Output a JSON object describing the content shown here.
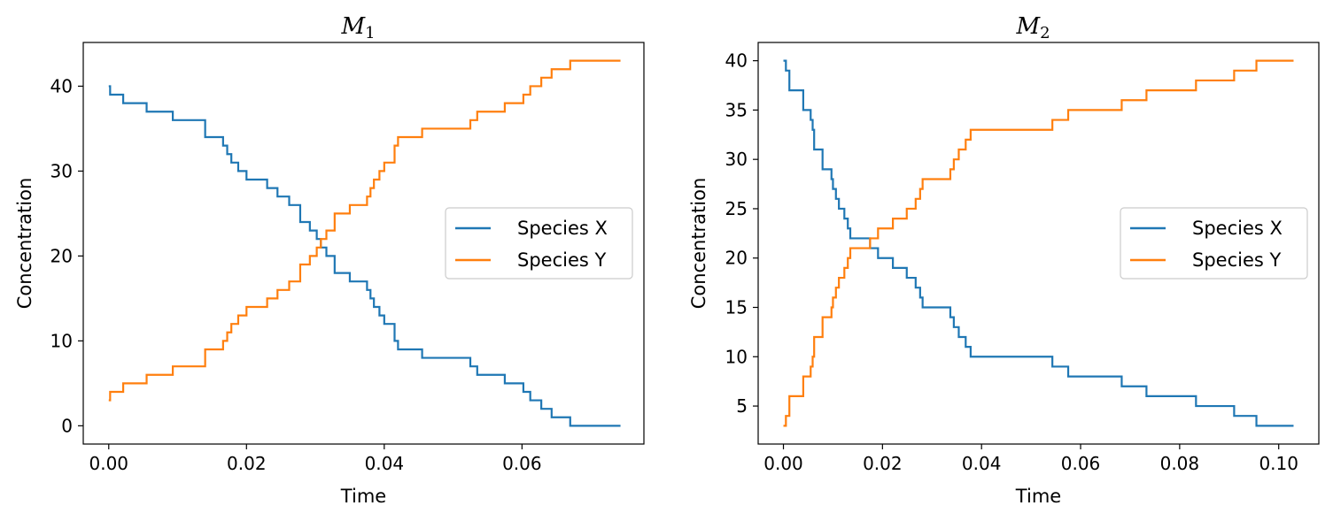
{
  "chart_data": [
    {
      "type": "line",
      "step": true,
      "title": "M",
      "title_subscript": "1",
      "xlabel": "Time",
      "ylabel": "Concentration",
      "xlim": [
        -0.0037,
        0.0777
      ],
      "ylim": [
        -2.15,
        45.15
      ],
      "xticks": [
        0.0,
        0.02,
        0.04,
        0.06
      ],
      "xtick_labels": [
        "0.00",
        "0.02",
        "0.04",
        "0.06"
      ],
      "yticks": [
        0,
        10,
        20,
        30,
        40
      ],
      "ytick_labels": [
        "0",
        "10",
        "20",
        "30",
        "40"
      ],
      "legend_position": "center-right",
      "series": [
        {
          "name": "Species X",
          "color": "#1f77b4",
          "x": [
            0,
            0.0002,
            0.0021,
            0.0055,
            0.0093,
            0.014,
            0.0166,
            0.0172,
            0.0178,
            0.0188,
            0.02,
            0.023,
            0.0245,
            0.0262,
            0.0278,
            0.0292,
            0.0302,
            0.0308,
            0.0316,
            0.0328,
            0.035,
            0.0375,
            0.038,
            0.0385,
            0.0393,
            0.04,
            0.0415,
            0.042,
            0.0455,
            0.0525,
            0.0535,
            0.0575,
            0.0602,
            0.0612,
            0.0628,
            0.0643,
            0.067,
            0.069,
            0.0743
          ],
          "y": [
            40,
            39,
            38,
            37,
            36,
            34,
            33,
            32,
            31,
            30,
            29,
            28,
            27,
            26,
            24,
            23,
            22,
            21,
            20,
            18,
            17,
            16,
            15,
            14,
            13,
            12,
            10,
            9,
            8,
            7,
            6,
            5,
            4,
            3,
            2,
            1,
            0,
            0,
            0
          ]
        },
        {
          "name": "Species Y",
          "color": "#ff7f0e",
          "x": [
            0,
            0.0002,
            0.0021,
            0.0055,
            0.0093,
            0.014,
            0.0166,
            0.0172,
            0.0178,
            0.0188,
            0.02,
            0.023,
            0.0245,
            0.0262,
            0.0278,
            0.0292,
            0.0302,
            0.0308,
            0.0316,
            0.0328,
            0.035,
            0.0375,
            0.038,
            0.0385,
            0.0393,
            0.04,
            0.0415,
            0.042,
            0.0455,
            0.0525,
            0.0535,
            0.0575,
            0.0602,
            0.0612,
            0.0628,
            0.0643,
            0.067,
            0.069,
            0.0743
          ],
          "y": [
            3,
            4,
            5,
            6,
            7,
            9,
            10,
            11,
            12,
            13,
            14,
            15,
            16,
            17,
            19,
            20,
            21,
            22,
            23,
            25,
            26,
            27,
            28,
            29,
            30,
            31,
            33,
            34,
            35,
            36,
            37,
            38,
            39,
            40,
            41,
            42,
            43,
            43,
            43
          ]
        }
      ]
    },
    {
      "type": "line",
      "step": true,
      "title": "M",
      "title_subscript": "2",
      "xlabel": "Time",
      "ylabel": "Concentration",
      "xlim": [
        -0.0051,
        0.1081
      ],
      "ylim": [
        1.15,
        41.85
      ],
      "xticks": [
        0.0,
        0.02,
        0.04,
        0.06,
        0.08,
        0.1
      ],
      "xtick_labels": [
        "0.00",
        "0.02",
        "0.04",
        "0.06",
        "0.08",
        "0.10"
      ],
      "yticks": [
        5,
        10,
        15,
        20,
        25,
        30,
        35,
        40
      ],
      "ytick_labels": [
        "5",
        "10",
        "15",
        "20",
        "25",
        "30",
        "35",
        "40"
      ],
      "legend_position": "center-right",
      "series": [
        {
          "name": "Species X",
          "color": "#1f77b4",
          "x": [
            0,
            0.0005,
            0.0012,
            0.004,
            0.0055,
            0.0059,
            0.0062,
            0.0079,
            0.0097,
            0.01,
            0.0106,
            0.0112,
            0.0123,
            0.013,
            0.0135,
            0.0175,
            0.0191,
            0.0221,
            0.0249,
            0.0267,
            0.0276,
            0.0281,
            0.0287,
            0.0337,
            0.0344,
            0.0354,
            0.0368,
            0.0378,
            0.0543,
            0.0575,
            0.0683,
            0.0733,
            0.0833,
            0.091,
            0.0955,
            0.103
          ],
          "y": [
            40,
            39,
            37,
            35,
            34,
            33,
            31,
            29,
            28,
            27,
            26,
            25,
            24,
            23,
            22,
            21,
            20,
            19,
            18,
            17,
            16,
            15,
            15,
            14,
            13,
            12,
            11,
            10,
            9,
            8,
            7,
            6,
            5,
            4,
            3,
            3
          ]
        },
        {
          "name": "Species Y",
          "color": "#ff7f0e",
          "x": [
            0,
            0.0005,
            0.0012,
            0.004,
            0.0055,
            0.0059,
            0.0062,
            0.0079,
            0.0097,
            0.01,
            0.0106,
            0.0112,
            0.0123,
            0.013,
            0.0135,
            0.0175,
            0.0191,
            0.0221,
            0.0249,
            0.0267,
            0.0276,
            0.0281,
            0.0287,
            0.0337,
            0.0344,
            0.0354,
            0.0368,
            0.0378,
            0.0543,
            0.0575,
            0.0683,
            0.0733,
            0.0833,
            0.091,
            0.0955,
            0.103
          ],
          "y": [
            3,
            4,
            6,
            8,
            9,
            10,
            12,
            14,
            15,
            16,
            17,
            18,
            19,
            20,
            21,
            22,
            23,
            24,
            25,
            26,
            27,
            28,
            28,
            29,
            30,
            31,
            32,
            33,
            34,
            35,
            36,
            37,
            38,
            39,
            40,
            40
          ]
        }
      ]
    }
  ]
}
